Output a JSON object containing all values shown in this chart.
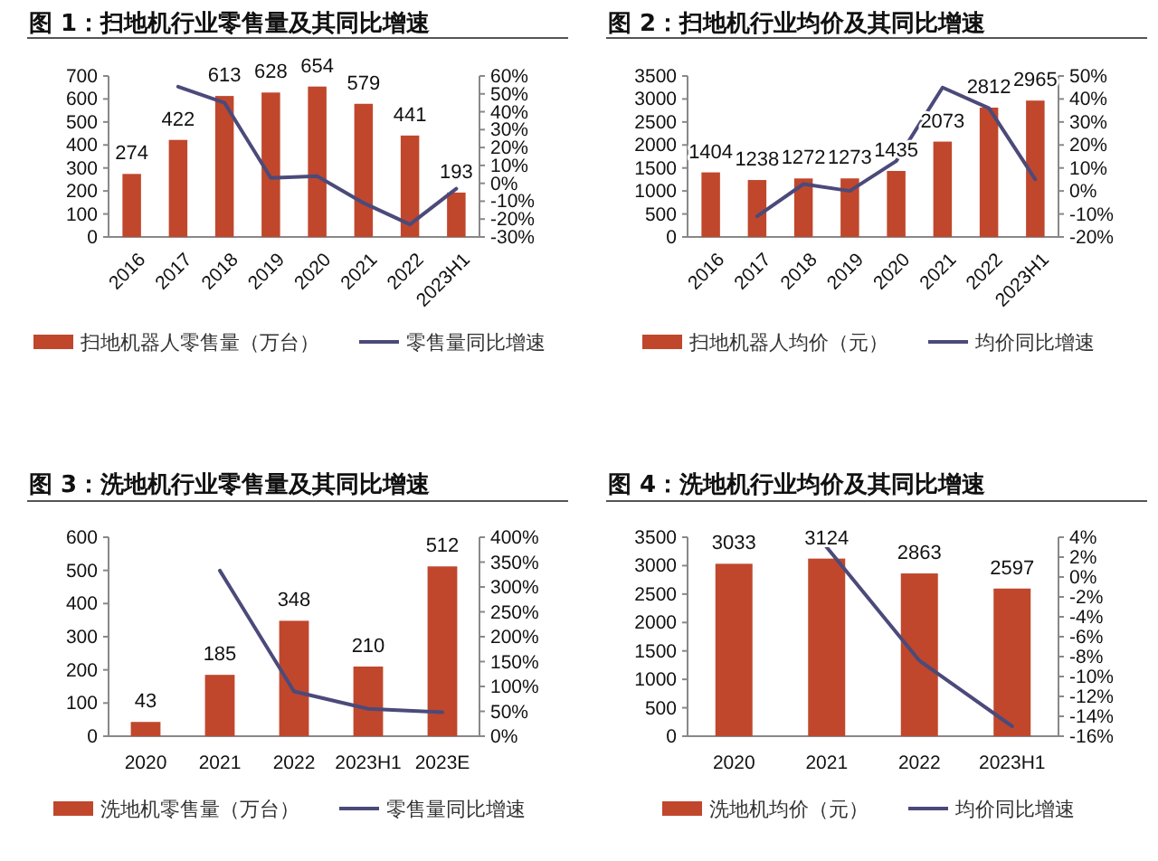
{
  "chart_data": [
    {
      "type": "bar",
      "title": "图 1：扫地机行业零售量及其同比增速",
      "categories": [
        "2016",
        "2017",
        "2018",
        "2019",
        "2020",
        "2021",
        "2022",
        "2023H1"
      ],
      "series": [
        {
          "name": "扫地机器人零售量（万台）",
          "color": "#c0472c",
          "values": [
            274,
            422,
            613,
            628,
            654,
            579,
            441,
            193
          ],
          "value_labels": [
            "274",
            "422",
            "613",
            "628",
            "654",
            "579",
            "441",
            "193"
          ]
        },
        {
          "name": "零售量同比增速",
          "type": "line",
          "axis": "y2",
          "color": "#4b4a7a",
          "values": [
            null,
            54,
            45,
            3,
            4,
            -11,
            -23,
            -3
          ]
        }
      ],
      "ylim": [
        0,
        700
      ],
      "yticks": [
        0,
        100,
        200,
        300,
        400,
        500,
        600,
        700
      ],
      "y2lim": [
        -30,
        60
      ],
      "y2ticks": [
        {
          "value": -30,
          "label": "-30%"
        },
        {
          "value": -20,
          "label": "-20%"
        },
        {
          "value": -10,
          "label": "-10%"
        },
        {
          "value": 0,
          "label": "0%"
        },
        {
          "value": 10,
          "label": "10%"
        },
        {
          "value": 20,
          "label": "20%"
        },
        {
          "value": 30,
          "label": "30%"
        },
        {
          "value": 40,
          "label": "40%"
        },
        {
          "value": 50,
          "label": "50%"
        },
        {
          "value": 60,
          "label": "60%"
        }
      ],
      "legend": "bottom",
      "grid": false,
      "marker": "none"
    },
    {
      "type": "bar",
      "title": "图 2：扫地机行业均价及其同比增速",
      "categories": [
        "2016",
        "2017",
        "2018",
        "2019",
        "2020",
        "2021",
        "2022",
        "2023H1"
      ],
      "series": [
        {
          "name": "扫地机器人均价（元）",
          "color": "#c0472c",
          "values": [
            1404,
            1238,
            1272,
            1273,
            1435,
            2073,
            2812,
            2965
          ],
          "value_labels": [
            "1404",
            "1238",
            "1272",
            "1273",
            "1435",
            "2073",
            "2812",
            "2965"
          ]
        },
        {
          "name": "均价同比增速",
          "type": "line",
          "axis": "y2",
          "color": "#4b4a7a",
          "values": [
            null,
            -11,
            3,
            0,
            13,
            45,
            36,
            5
          ]
        }
      ],
      "ylim": [
        0,
        3500
      ],
      "yticks": [
        0,
        500,
        1000,
        1500,
        2000,
        2500,
        3000,
        3500
      ],
      "y2lim": [
        -20,
        50
      ],
      "y2ticks": [
        {
          "value": -20,
          "label": "-20%"
        },
        {
          "value": -10,
          "label": "-10%"
        },
        {
          "value": 0,
          "label": "0%"
        },
        {
          "value": 10,
          "label": "10%"
        },
        {
          "value": 20,
          "label": "20%"
        },
        {
          "value": 30,
          "label": "30%"
        },
        {
          "value": 40,
          "label": "40%"
        },
        {
          "value": 50,
          "label": "50%"
        }
      ],
      "legend": "bottom",
      "grid": false,
      "marker": "none"
    },
    {
      "type": "bar",
      "title": "图 3：洗地机行业零售量及其同比增速",
      "categories": [
        "2020",
        "2021",
        "2022",
        "2023H1",
        "2023E"
      ],
      "series": [
        {
          "name": "洗地机零售量（万台）",
          "color": "#c0472c",
          "values": [
            43,
            185,
            348,
            210,
            512
          ],
          "value_labels": [
            "43",
            "185",
            "348",
            "210",
            "512"
          ]
        },
        {
          "name": "零售量同比增速",
          "type": "line",
          "axis": "y2",
          "color": "#4b4a7a",
          "values": [
            null,
            333,
            90,
            55,
            48
          ]
        }
      ],
      "ylim": [
        0,
        600
      ],
      "yticks": [
        0,
        100,
        200,
        300,
        400,
        500,
        600
      ],
      "y2lim": [
        0,
        400
      ],
      "y2ticks": [
        {
          "value": 0,
          "label": "0%"
        },
        {
          "value": 50,
          "label": "50%"
        },
        {
          "value": 100,
          "label": "100%"
        },
        {
          "value": 150,
          "label": "150%"
        },
        {
          "value": 200,
          "label": "200%"
        },
        {
          "value": 250,
          "label": "250%"
        },
        {
          "value": 300,
          "label": "300%"
        },
        {
          "value": 350,
          "label": "350%"
        },
        {
          "value": 400,
          "label": "400%"
        }
      ],
      "legend": "bottom",
      "grid": false,
      "marker": "none"
    },
    {
      "type": "bar",
      "title": "图 4：洗地机行业均价及其同比增速",
      "categories": [
        "2020",
        "2021",
        "2022",
        "2023H1"
      ],
      "series": [
        {
          "name": "洗地机均价（元）",
          "color": "#c0472c",
          "values": [
            3033,
            3124,
            2863,
            2597
          ],
          "value_labels": [
            "3033",
            "3124",
            "2863",
            "2597"
          ]
        },
        {
          "name": "均价同比增速",
          "type": "line",
          "axis": "y2",
          "color": "#4b4a7a",
          "values": [
            null,
            3,
            -8.4,
            -15
          ]
        }
      ],
      "ylim": [
        0,
        3500
      ],
      "yticks": [
        0,
        500,
        1000,
        1500,
        2000,
        2500,
        3000,
        3500
      ],
      "y2lim": [
        -16,
        4
      ],
      "y2ticks": [
        {
          "value": -16,
          "label": "-16%"
        },
        {
          "value": -14,
          "label": "-14%"
        },
        {
          "value": -12,
          "label": "-12%"
        },
        {
          "value": -10,
          "label": "-10%"
        },
        {
          "value": -8,
          "label": "-8%"
        },
        {
          "value": -6,
          "label": "-6%"
        },
        {
          "value": -4,
          "label": "-4%"
        },
        {
          "value": -2,
          "label": "-2%"
        },
        {
          "value": 0,
          "label": "0%"
        },
        {
          "value": 2,
          "label": "2%"
        },
        {
          "value": 4,
          "label": "4%"
        }
      ],
      "legend": "bottom",
      "grid": false,
      "marker": "none"
    }
  ]
}
